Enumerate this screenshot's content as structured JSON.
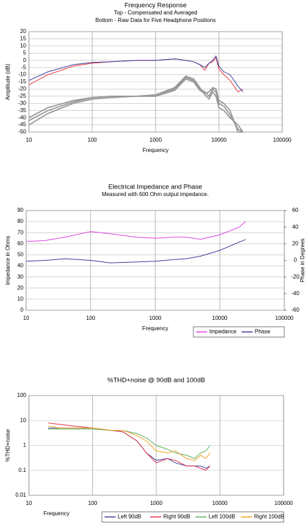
{
  "chart_data": [
    {
      "type": "line",
      "title": "Frequency Response",
      "subtitle": [
        "Top -  Compensated and Averaged",
        "Bottom - Raw Data for Five Headphone Positions"
      ],
      "x_label": "Frequency",
      "y_label": "Amplitude (dB)",
      "xscale": "log",
      "xlim": [
        10,
        100000
      ],
      "xticks": [
        10,
        100,
        1000,
        10000,
        100000
      ],
      "ylim": [
        -50,
        20
      ],
      "yticks": [
        -50,
        -45,
        -40,
        -35,
        -30,
        -25,
        -20,
        -15,
        -10,
        -5,
        0,
        5,
        10,
        15,
        20
      ],
      "grid": true,
      "x": [
        10,
        20,
        50,
        100,
        200,
        500,
        1000,
        2000,
        3000,
        4000,
        5000,
        6000,
        7000,
        8000,
        9000,
        10000,
        12000,
        15000,
        20000,
        24000
      ],
      "series": [
        {
          "color": "#e8393f",
          "values": [
            -17,
            -10,
            -4,
            -2,
            -1,
            0,
            0,
            1,
            0,
            -1,
            -3,
            -7,
            -2,
            -1,
            2,
            -6,
            -10,
            -14,
            -22,
            -20
          ]
        },
        {
          "color": "#3c3c9c",
          "values": [
            -14,
            -8,
            -3,
            -1.5,
            -1,
            0,
            0,
            1,
            0,
            -1,
            -3,
            -5,
            -2,
            0,
            3,
            -4,
            -8,
            -10,
            -18,
            -22
          ]
        },
        {
          "color": "#999999",
          "values": [
            -42,
            -35,
            -29,
            -26,
            -25,
            -25,
            -25,
            -20,
            -12,
            -14,
            -20,
            -22,
            -25,
            -20,
            -22,
            -30,
            -32,
            -38,
            -48,
            -50
          ]
        },
        {
          "color": "#999999",
          "values": [
            -40,
            -33,
            -28,
            -26,
            -25,
            -25,
            -24,
            -19,
            -11,
            -13,
            -19,
            -24,
            -27,
            -22,
            -25,
            -33,
            -35,
            -40,
            -45,
            -50
          ]
        },
        {
          "color": "#999999",
          "values": [
            -45,
            -37,
            -30,
            -27,
            -26,
            -25,
            -25,
            -21,
            -13,
            -15,
            -21,
            -23,
            -22,
            -19,
            -20,
            -28,
            -30,
            -35,
            -50,
            -50
          ]
        }
      ]
    },
    {
      "type": "line",
      "title": "Electrical Impedance and Phase",
      "subtitle": [
        "Measured with 600 Ohm output impedance."
      ],
      "x_label": "Frequency",
      "y_label": "Impedance in Ohms",
      "y2_label": "Phase in Degrees",
      "xscale": "log",
      "xlim": [
        10,
        100000
      ],
      "xticks": [
        10,
        100,
        1000,
        10000,
        100000
      ],
      "ylim": [
        0,
        90
      ],
      "yticks": [
        0,
        10,
        20,
        30,
        40,
        50,
        60,
        70,
        80,
        90
      ],
      "y2lim": [
        -60,
        60
      ],
      "y2ticks": [
        -60,
        -40,
        -20,
        0,
        20,
        40,
        60
      ],
      "grid": true,
      "legend": "bottom-right",
      "x": [
        10,
        20,
        40,
        100,
        200,
        500,
        1000,
        2000,
        3000,
        5000,
        10000,
        20000,
        25000
      ],
      "series": [
        {
          "name": "Impedance",
          "color": "#e040e0",
          "values": [
            62,
            63,
            66,
            71,
            69,
            66,
            65,
            66,
            66,
            64,
            68,
            75,
            80
          ]
        },
        {
          "name": "Phase",
          "color": "#3c3c9c",
          "axis": "y2",
          "values": [
            -1,
            0,
            2,
            0,
            -3,
            -2,
            -1,
            1,
            2,
            5,
            12,
            22,
            25
          ]
        }
      ]
    },
    {
      "type": "line",
      "title": "%THD+noise @ 90dB and 100dB",
      "x_label": "Frequency",
      "y_label": "%THD+noise",
      "xscale": "log",
      "yscale": "log",
      "xlim": [
        10,
        100000
      ],
      "xticks": [
        10,
        100,
        1000,
        10000,
        100000
      ],
      "ylim": [
        0.01,
        100
      ],
      "yticks": [
        0.01,
        0.1,
        1,
        10,
        100
      ],
      "grid": true,
      "legend": "bottom",
      "x": [
        20,
        30,
        50,
        100,
        200,
        300,
        500,
        700,
        1000,
        1500,
        2000,
        3000,
        4000,
        5000,
        6000,
        7000
      ],
      "series": [
        {
          "name": "Left 90dB",
          "color": "#4040a0",
          "values": [
            5,
            5,
            5,
            5,
            4,
            3.5,
            1.5,
            0.5,
            0.25,
            0.3,
            0.2,
            0.15,
            0.15,
            0.15,
            0.12,
            0.15
          ]
        },
        {
          "name": "Right 90dB",
          "color": "#e0304a",
          "values": [
            8,
            7,
            6,
            5,
            4,
            3.5,
            1.5,
            0.5,
            0.2,
            0.3,
            0.25,
            0.15,
            0.15,
            0.12,
            0.1,
            0.15
          ]
        },
        {
          "name": "Left 100dB",
          "color": "#60b060",
          "values": [
            4.5,
            4.5,
            4.5,
            4.5,
            4,
            4,
            3,
            2,
            1,
            0.7,
            0.5,
            0.4,
            0.3,
            0.5,
            0.6,
            1
          ]
        },
        {
          "name": "Right 100dB",
          "color": "#f0a020",
          "values": [
            6,
            5,
            5,
            5,
            4,
            4,
            2.5,
            1.5,
            0.6,
            0.5,
            0.6,
            0.3,
            0.25,
            0.4,
            0.3,
            0.5
          ]
        }
      ]
    }
  ]
}
